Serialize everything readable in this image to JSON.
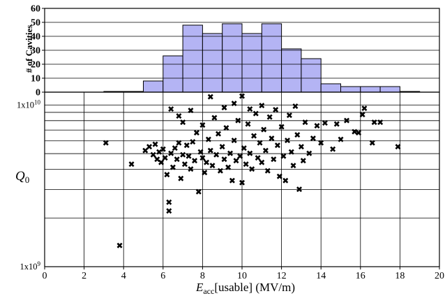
{
  "chart_data": [
    {
      "type": "bar",
      "ylabel": "# of Cavities",
      "ylim": [
        0,
        60
      ],
      "yticks": [
        "0",
        "10",
        "20",
        "30",
        "40",
        "50",
        "60"
      ],
      "xlim": [
        0,
        20
      ],
      "bin_width": 1,
      "bins": [
        0,
        1,
        2,
        3,
        4,
        5,
        6,
        7,
        8,
        9,
        10,
        11,
        12,
        13,
        14,
        15,
        16,
        17,
        18,
        19
      ],
      "values": [
        0,
        0,
        0,
        0.5,
        0.5,
        8,
        26,
        48,
        42,
        49,
        42,
        49,
        31,
        24,
        6,
        4,
        4,
        4,
        0.5,
        0
      ],
      "bar_color": "#b4b4f4",
      "grid": "horizontal"
    },
    {
      "type": "scatter",
      "xlabel_main": "E",
      "xlabel_sub": "acc",
      "xlabel_rest": "[usable]  (MV/m)",
      "ylabel_main": "Q",
      "ylabel_sub": "0",
      "xlim": [
        0,
        20
      ],
      "ylim": [
        1000000000,
        12000000000
      ],
      "yscale": "log",
      "xticks": [
        "0",
        "2",
        "4",
        "6",
        "8",
        "10",
        "12",
        "14",
        "16",
        "18",
        "20"
      ],
      "yticks": [
        "1x10",
        "1x10"
      ],
      "ytick_exponents": [
        "9",
        "10"
      ],
      "marker": "✖",
      "points": [
        [
          3.1,
          5800000000.0
        ],
        [
          3.8,
          1350000000.0
        ],
        [
          4.4,
          4300000000.0
        ],
        [
          5.1,
          5200000000.0
        ],
        [
          5.3,
          5500000000.0
        ],
        [
          5.5,
          4900000000.0
        ],
        [
          5.6,
          5700000000.0
        ],
        [
          5.7,
          4600000000.0
        ],
        [
          5.8,
          5100000000.0
        ],
        [
          5.9,
          4400000000.0
        ],
        [
          6.0,
          5300000000.0
        ],
        [
          6.1,
          4700000000.0
        ],
        [
          6.2,
          3700000000.0
        ],
        [
          6.3,
          2500000000.0
        ],
        [
          6.3,
          2200000000.0
        ],
        [
          6.4,
          9400000000.0
        ],
        [
          6.4,
          5000000000.0
        ],
        [
          6.5,
          4100000000.0
        ],
        [
          6.6,
          5400000000.0
        ],
        [
          6.7,
          4600000000.0
        ],
        [
          6.8,
          8500000000.0
        ],
        [
          6.8,
          5800000000.0
        ],
        [
          6.9,
          3500000000.0
        ],
        [
          7.0,
          4900000000.0
        ],
        [
          7.0,
          7800000000.0
        ],
        [
          7.1,
          4300000000.0
        ],
        [
          7.2,
          5600000000.0
        ],
        [
          7.3,
          4800000000.0
        ],
        [
          7.4,
          9200000000.0
        ],
        [
          7.4,
          4000000000.0
        ],
        [
          7.5,
          5900000000.0
        ],
        [
          7.6,
          4500000000.0
        ],
        [
          7.7,
          6700000000.0
        ],
        [
          7.8,
          2900000000.0
        ],
        [
          7.9,
          5100000000.0
        ],
        [
          8.0,
          4700000000.0
        ],
        [
          8.0,
          7500000000.0
        ],
        [
          8.1,
          3800000000.0
        ],
        [
          8.2,
          4400000000.0
        ],
        [
          8.3,
          6100000000.0
        ],
        [
          8.4,
          11200000000.0
        ],
        [
          8.4,
          5200000000.0
        ],
        [
          8.5,
          4200000000.0
        ],
        [
          8.6,
          8300000000.0
        ],
        [
          8.7,
          4900000000.0
        ],
        [
          8.8,
          6600000000.0
        ],
        [
          8.9,
          3900000000.0
        ],
        [
          9.0,
          5500000000.0
        ],
        [
          9.1,
          9600000000.0
        ],
        [
          9.1,
          4600000000.0
        ],
        [
          9.2,
          7200000000.0
        ],
        [
          9.3,
          4100000000.0
        ],
        [
          9.4,
          5000000000.0
        ],
        [
          9.5,
          3400000000.0
        ],
        [
          9.6,
          10200000000.0
        ],
        [
          9.6,
          6000000000.0
        ],
        [
          9.7,
          4500000000.0
        ],
        [
          9.8,
          8000000000.0
        ],
        [
          9.9,
          4800000000.0
        ],
        [
          10.0,
          3300000000.0
        ],
        [
          10.0,
          11300000000.0
        ],
        [
          10.1,
          5400000000.0
        ],
        [
          10.2,
          4300000000.0
        ],
        [
          10.3,
          7600000000.0
        ],
        [
          10.4,
          9400000000.0
        ],
        [
          10.4,
          5000000000.0
        ],
        [
          10.5,
          4000000000.0
        ],
        [
          10.6,
          6400000000.0
        ],
        [
          10.7,
          8800000000.0
        ],
        [
          10.8,
          4700000000.0
        ],
        [
          10.9,
          5800000000.0
        ],
        [
          11.0,
          9900000000.0
        ],
        [
          11.0,
          4400000000.0
        ],
        [
          11.1,
          7000000000.0
        ],
        [
          11.2,
          5200000000.0
        ],
        [
          11.3,
          3900000000.0
        ],
        [
          11.4,
          8400000000.0
        ],
        [
          11.5,
          6200000000.0
        ],
        [
          11.6,
          4600000000.0
        ],
        [
          11.7,
          9300000000.0
        ],
        [
          11.8,
          5600000000.0
        ],
        [
          11.9,
          3600000000.0
        ],
        [
          12.0,
          7300000000.0
        ],
        [
          12.1,
          4800000000.0
        ],
        [
          12.2,
          3400000000.0
        ],
        [
          12.3,
          6000000000.0
        ],
        [
          12.4,
          8600000000.0
        ],
        [
          12.5,
          5100000000.0
        ],
        [
          12.6,
          4200000000.0
        ],
        [
          12.7,
          9800000000.0
        ],
        [
          12.8,
          6500000000.0
        ],
        [
          12.9,
          3000000000.0
        ],
        [
          13.0,
          5500000000.0
        ],
        [
          13.1,
          4500000000.0
        ],
        [
          13.2,
          7800000000.0
        ],
        [
          13.4,
          5000000000.0
        ],
        [
          13.6,
          6200000000.0
        ],
        [
          13.8,
          7400000000.0
        ],
        [
          14.0,
          5800000000.0
        ],
        [
          14.2,
          7700000000.0
        ],
        [
          14.6,
          5300000000.0
        ],
        [
          14.8,
          7600000000.0
        ],
        [
          15.0,
          6100000000.0
        ],
        [
          15.3,
          8000000000.0
        ],
        [
          15.7,
          6800000000.0
        ],
        [
          15.9,
          6700000000.0
        ],
        [
          16.1,
          8700000000.0
        ],
        [
          16.2,
          9500000000.0
        ],
        [
          16.6,
          5800000000.0
        ],
        [
          16.7,
          7800000000.0
        ],
        [
          17.0,
          7800000000.0
        ],
        [
          17.9,
          5500000000.0
        ]
      ]
    }
  ]
}
